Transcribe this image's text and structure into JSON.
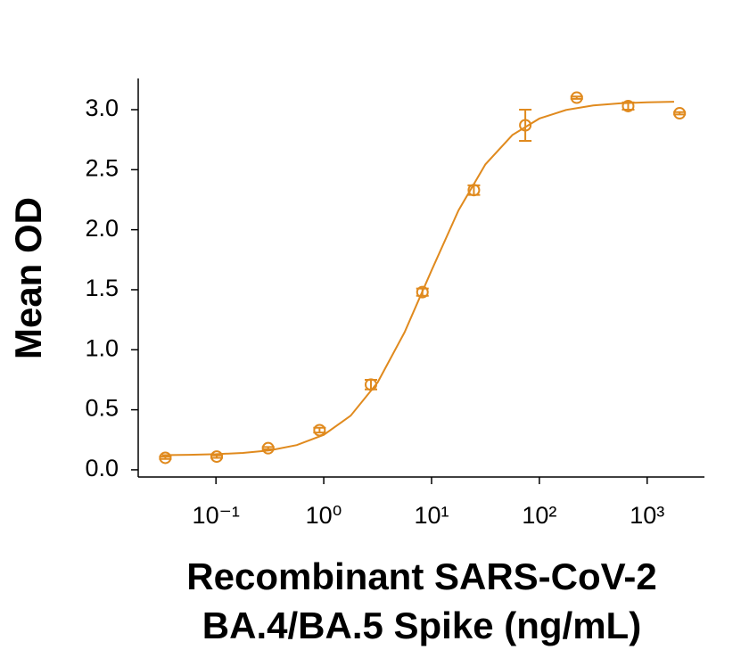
{
  "chart_data": {
    "type": "scatter",
    "x_label": [
      "Recombinant SARS-CoV-2",
      "BA.4/BA.5 Spike (ng/mL)"
    ],
    "y_label": "Mean OD",
    "x_scale": "log",
    "color": "#e08a1e",
    "x": [
      0.0339,
      0.1016,
      0.305,
      0.914,
      2.74,
      8.23,
      24.69,
      74.07,
      222.2,
      666.7,
      2000
    ],
    "values": [
      0.1,
      0.11,
      0.18,
      0.33,
      0.71,
      1.48,
      2.33,
      2.87,
      3.1,
      3.03,
      2.97
    ],
    "errors": [
      0.01,
      0.01,
      0.01,
      0.02,
      0.04,
      0.03,
      0.04,
      0.13,
      0.01,
      0.03,
      0.01
    ],
    "curve": {
      "x": [
        0.0316,
        0.0562,
        0.1,
        0.178,
        0.316,
        0.562,
        1,
        1.778,
        3.162,
        5.623,
        10,
        17.78,
        31.62,
        56.23,
        100,
        177.8,
        316.2,
        562.3,
        1000,
        1778
      ],
      "values": [
        0.122,
        0.125,
        0.13,
        0.141,
        0.162,
        0.206,
        0.291,
        0.451,
        0.728,
        1.146,
        1.661,
        2.161,
        2.545,
        2.789,
        2.926,
        2.998,
        3.035,
        3.053,
        3.061,
        3.066
      ]
    },
    "xlim": [
      0.019,
      3400
    ],
    "ylim": [
      -0.06,
      3.26
    ],
    "xticks": [
      {
        "value": 0.1,
        "label": "10⁻¹"
      },
      {
        "value": 1,
        "label": "10⁰"
      },
      {
        "value": 10,
        "label": "10¹"
      },
      {
        "value": 100,
        "label": "10²"
      },
      {
        "value": 1000,
        "label": "10³"
      }
    ],
    "yticks": [
      {
        "value": 0,
        "label": "0.0"
      },
      {
        "value": 0.5,
        "label": "0.5"
      },
      {
        "value": 1,
        "label": "1.0"
      },
      {
        "value": 1.5,
        "label": "1.5"
      },
      {
        "value": 2,
        "label": "2.0"
      },
      {
        "value": 2.5,
        "label": "2.5"
      },
      {
        "value": 3,
        "label": "3.0"
      }
    ]
  }
}
